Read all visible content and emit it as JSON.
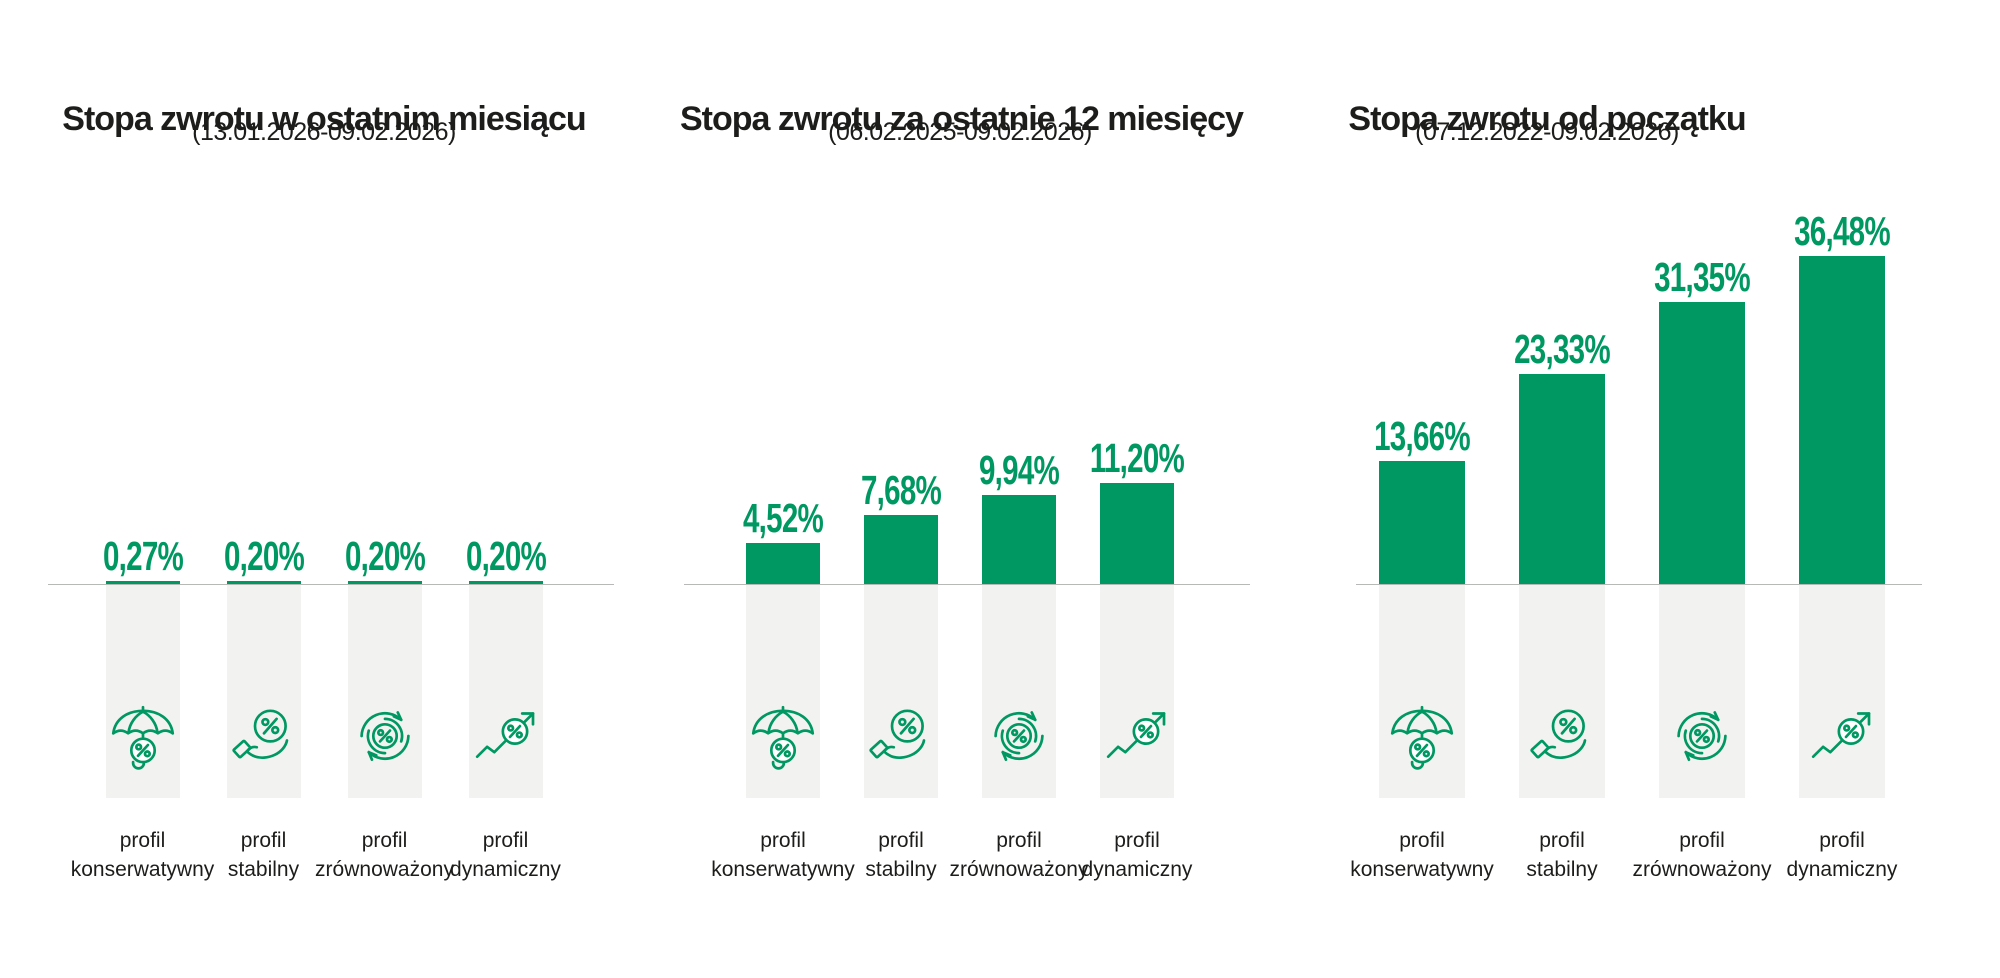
{
  "colors": {
    "bar_green": "#009862",
    "value_text_green": "#009862",
    "icon_green": "#009862",
    "column_gray": "#f2f3f1",
    "baseline_gray": "#b7b9b7",
    "text_black": "#1d1d1b",
    "background": "#ffffff"
  },
  "profiles": [
    {
      "line1": "profil",
      "line2": "konserwatywny",
      "icon": "umbrella-percent-icon"
    },
    {
      "line1": "profil",
      "line2": "stabilny",
      "icon": "hand-percent-icon"
    },
    {
      "line1": "profil",
      "line2": "zrównoważony",
      "icon": "cycle-percent-icon"
    },
    {
      "line1": "profil",
      "line2": "dynamiczny",
      "icon": "growth-percent-icon"
    }
  ],
  "chart_data": [
    {
      "type": "bar",
      "title": "Stopa zwrotu w ostatnim miesiącu",
      "subtitle": "(13.01.2026-09.02.2026)",
      "categories": [
        "profil konserwatywny",
        "profil stabilny",
        "profil zrównoważony",
        "profil dynamiczny"
      ],
      "values": [
        0.27,
        0.2,
        0.2,
        0.2
      ],
      "value_labels": [
        "0,27%",
        "0,20%",
        "0,20%",
        "0,20%"
      ],
      "unit": "%",
      "ylim": [
        0,
        40
      ],
      "bar_color": "#009862",
      "grid": false,
      "legend": false
    },
    {
      "type": "bar",
      "title": "Stopa zwrotu za ostatnie 12 miesięcy",
      "subtitle": "(06.02.2025-09.02.2026)",
      "categories": [
        "profil konserwatywny",
        "profil stabilny",
        "profil zrównoważony",
        "profil dynamiczny"
      ],
      "values": [
        4.52,
        7.68,
        9.94,
        11.2
      ],
      "value_labels": [
        "4,52%",
        "7,68%",
        "9,94%",
        "11,20%"
      ],
      "unit": "%",
      "ylim": [
        0,
        40
      ],
      "bar_color": "#009862",
      "grid": false,
      "legend": false
    },
    {
      "type": "bar",
      "title": "Stopa zwrotu od początku",
      "subtitle": "(07.12.2022-09.02.2026)",
      "categories": [
        "profil konserwatywny",
        "profil stabilny",
        "profil zrównoważony",
        "profil dynamiczny"
      ],
      "values": [
        13.66,
        23.33,
        31.35,
        36.48
      ],
      "value_labels": [
        "13,66%",
        "23,33%",
        "31,35%",
        "36,48%"
      ],
      "unit": "%",
      "ylim": [
        0,
        40
      ],
      "bar_color": "#009862",
      "grid": false,
      "legend": false
    }
  ]
}
